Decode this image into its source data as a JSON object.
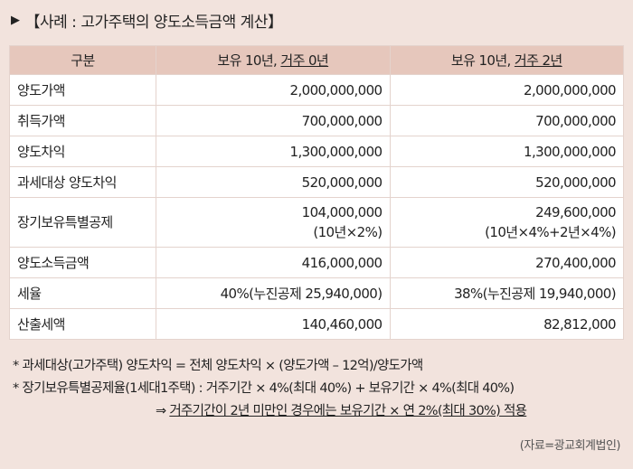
{
  "title": "【사례 : 고가주택의 양도소득금액 계산】",
  "table": {
    "header": {
      "col1": "구분",
      "col2_prefix": "보유 10년, ",
      "col2_underlined": "거주 0년",
      "col3_prefix": "보유 10년, ",
      "col3_underlined": "거주 2년"
    },
    "rows": [
      {
        "label": "양도가액",
        "a": "2,000,000,000",
        "b": "2,000,000,000"
      },
      {
        "label": "취득가액",
        "a": "700,000,000",
        "b": "700,000,000"
      },
      {
        "label": "양도차익",
        "a": "1,300,000,000",
        "b": "1,300,000,000"
      },
      {
        "label": "과세대상 양도차익",
        "a": "520,000,000",
        "b": "520,000,000"
      },
      {
        "label": "장기보유특별공제",
        "a": "104,000,000",
        "a2": "(10년×2%)",
        "b": "249,600,000",
        "b2": "(10년×4%+2년×4%)"
      },
      {
        "label": "양도소득금액",
        "a": "416,000,000",
        "b": "270,400,000"
      },
      {
        "label": "세율",
        "a": "40%(누진공제 25,940,000)",
        "b": "38%(누진공제 19,940,000)"
      },
      {
        "label": "산출세액",
        "a": "140,460,000",
        "b": "82,812,000"
      }
    ]
  },
  "notes": {
    "line1": "* 과세대상(고가주택) 양도차익 = 전체 양도차익 × (양도가액 – 12억)/양도가액",
    "line2": "* 장기보유특별공제율(1세대1주택) : 거주기간 × 4%(최대 40%) + 보유기간 × 4%(최대 40%)",
    "line3_arrow": "⇒ ",
    "line3_text": "거주기간이 2년 미만인 경우에는 보유기간 × 연 2%(최대 30%) 적용"
  },
  "source": "(자료=광교회계법인)"
}
